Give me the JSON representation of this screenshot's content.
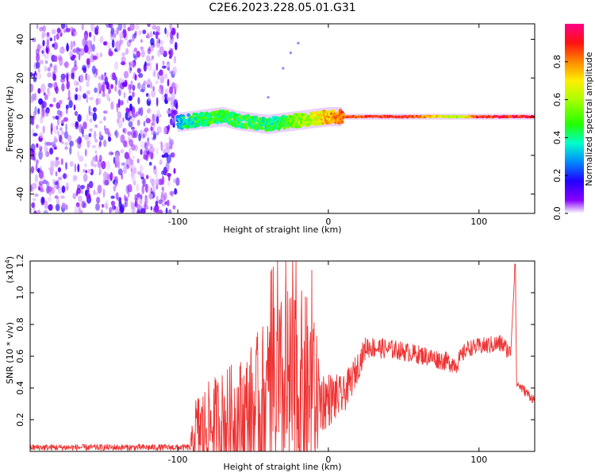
{
  "title": "C2E6.2023.228.05.01.G31",
  "chart_data": [
    {
      "type": "heatmap",
      "name": "spectrogram",
      "xlabel": "Height of straight line (km)",
      "ylabel": "Frequency (Hz)",
      "xlim": [
        -198,
        137
      ],
      "ylim": [
        -50,
        48
      ],
      "xticks": [
        -100,
        0,
        100
      ],
      "yticks": [
        -40,
        -20,
        0,
        20,
        40
      ],
      "colorbar": {
        "label": "Normalized spectral amplitude",
        "ticks": [
          0.0,
          0.2,
          0.4,
          0.6,
          0.8
        ],
        "range": [
          0,
          1
        ]
      },
      "signal_track": {
        "noise_region_end_x": -100,
        "trace": [
          {
            "x": -100,
            "f": -3,
            "amp": 0.3
          },
          {
            "x": -90,
            "f": -2,
            "amp": 0.4
          },
          {
            "x": -80,
            "f": -1,
            "amp": 0.45
          },
          {
            "x": -70,
            "f": 0,
            "amp": 0.45
          },
          {
            "x": -60,
            "f": -2,
            "amp": 0.45
          },
          {
            "x": -50,
            "f": -3,
            "amp": 0.45
          },
          {
            "x": -40,
            "f": -4,
            "amp": 0.4
          },
          {
            "x": -30,
            "f": -3,
            "amp": 0.45
          },
          {
            "x": -20,
            "f": -2,
            "amp": 0.55
          },
          {
            "x": -10,
            "f": -1,
            "amp": 0.65
          },
          {
            "x": 0,
            "f": 0,
            "amp": 0.75
          },
          {
            "x": 10,
            "f": 0,
            "amp": 0.85
          },
          {
            "x": 50,
            "f": 0,
            "amp": 0.9
          },
          {
            "x": 85,
            "f": 0,
            "amp": 0.6
          },
          {
            "x": 100,
            "f": 0,
            "amp": 0.9
          },
          {
            "x": 137,
            "f": 0,
            "amp": 0.9
          }
        ],
        "faint_branch": [
          {
            "x": -40,
            "f": 10
          },
          {
            "x": -30,
            "f": 25
          },
          {
            "x": -25,
            "f": 33
          },
          {
            "x": -20,
            "f": 38
          }
        ]
      }
    },
    {
      "type": "line",
      "name": "snr",
      "xlabel": "Height of straight line (km)",
      "ylabel": "SNR (10 * v/v)",
      "multiplier_label": "(x10",
      "multiplier_exp": "4",
      "multiplier_close": ")",
      "xlim": [
        -198,
        137
      ],
      "ylim": [
        0,
        12000
      ],
      "xticks": [
        -100,
        0,
        100
      ],
      "yticks": [
        2000,
        4000,
        6000,
        8000,
        10000,
        12000
      ],
      "ytick_labels": [
        "0.2",
        "0.4",
        "0.6",
        "0.8",
        "1.0",
        "1.2"
      ],
      "color": "#ee3333",
      "profile": [
        {
          "x": -198,
          "y": 250,
          "spread": 200
        },
        {
          "x": -92,
          "y": 250,
          "spread": 200
        },
        {
          "x": -88,
          "y": 1200,
          "spread": 2400
        },
        {
          "x": -75,
          "y": 1800,
          "spread": 3000
        },
        {
          "x": -55,
          "y": 2200,
          "spread": 4000
        },
        {
          "x": -38,
          "y": 3000,
          "spread": 6000
        },
        {
          "x": -25,
          "y": 3600,
          "spread": 7000
        },
        {
          "x": -12,
          "y": 3800,
          "spread": 6000
        },
        {
          "x": -4,
          "y": 3200,
          "spread": 2000
        },
        {
          "x": 10,
          "y": 3500,
          "spread": 1200
        },
        {
          "x": 18,
          "y": 5000,
          "spread": 1000
        },
        {
          "x": 25,
          "y": 6600,
          "spread": 700
        },
        {
          "x": 45,
          "y": 6400,
          "spread": 600
        },
        {
          "x": 65,
          "y": 6000,
          "spread": 600
        },
        {
          "x": 85,
          "y": 5500,
          "spread": 600
        },
        {
          "x": 92,
          "y": 6500,
          "spread": 500
        },
        {
          "x": 115,
          "y": 6800,
          "spread": 600
        },
        {
          "x": 121,
          "y": 6200,
          "spread": 500
        },
        {
          "x": 124,
          "y": 11800,
          "spread": 0
        },
        {
          "x": 125,
          "y": 4300,
          "spread": 300
        },
        {
          "x": 137,
          "y": 3200,
          "spread": 300
        }
      ]
    }
  ]
}
